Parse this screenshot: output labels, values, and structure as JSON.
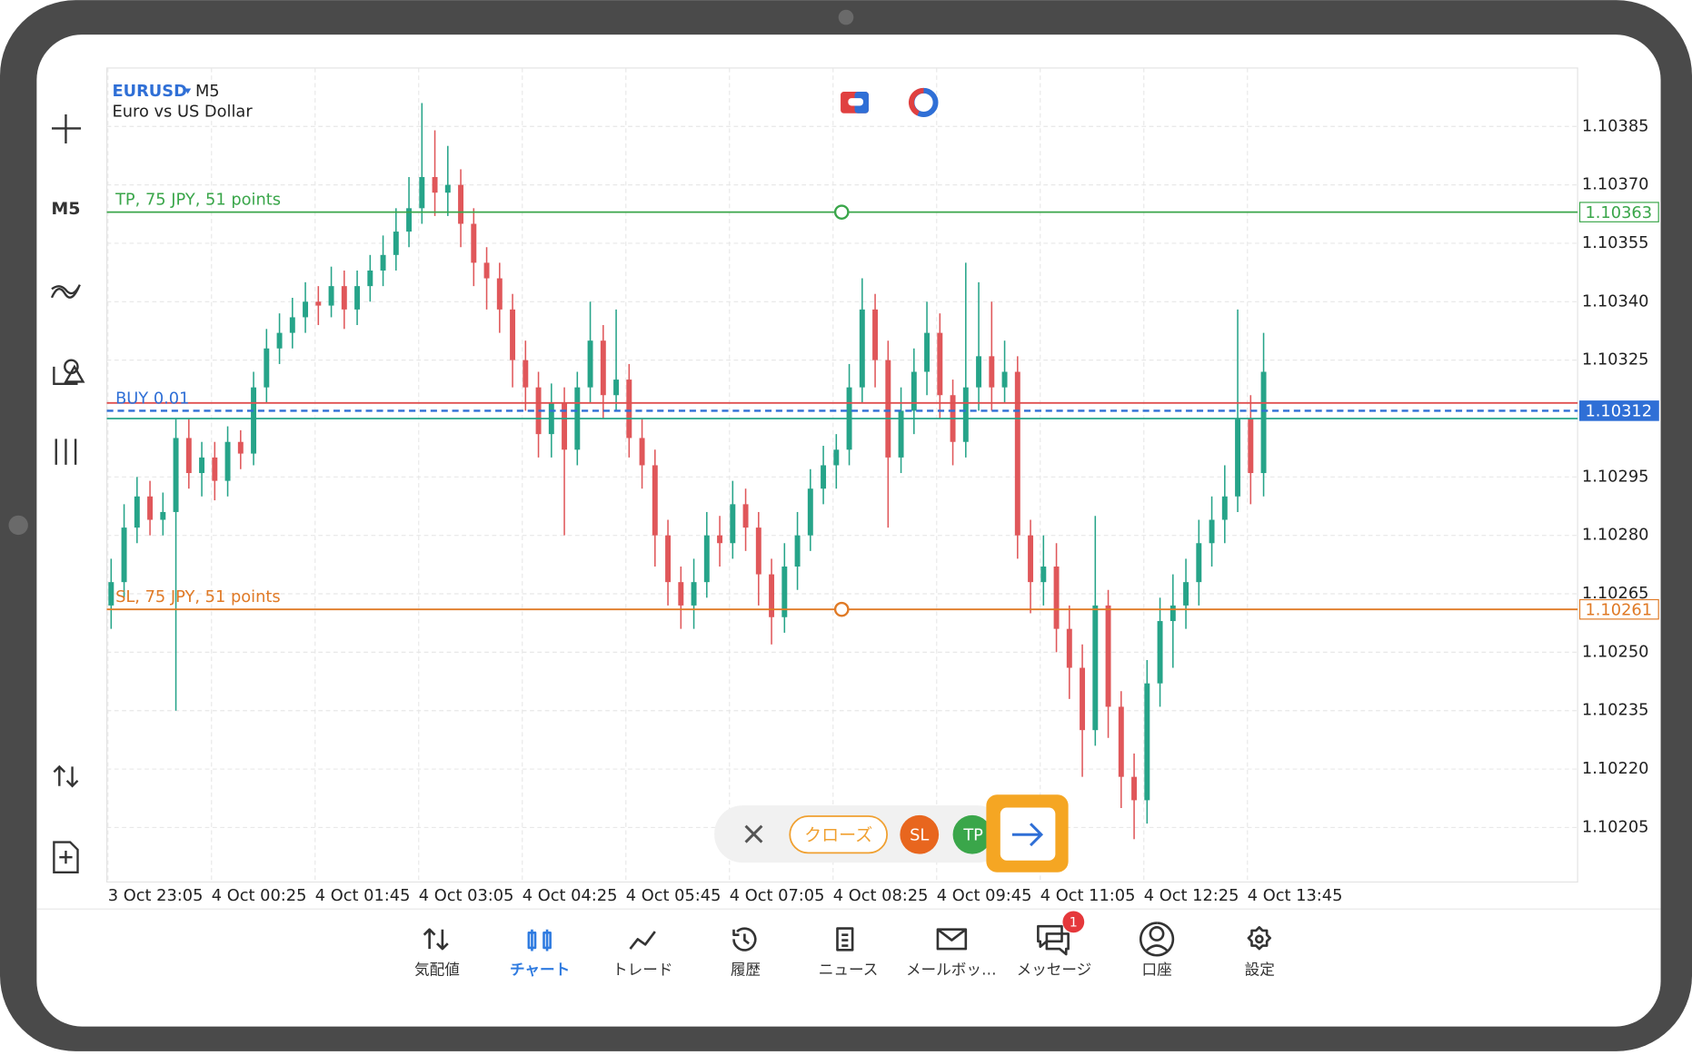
{
  "header": {
    "symbol": "EURUSD",
    "timeframe": "M5",
    "description": "Euro vs US Dollar"
  },
  "toolbar": {
    "timeframe": "M5"
  },
  "chart_data": {
    "type": "candlestick",
    "up_color": "#26a489",
    "down_color": "#e0575a",
    "grid": true,
    "ylim": [
      1.10191,
      1.104
    ],
    "yticks": [
      1.10385,
      {
        "value": 1.1037,
        "label": "1.10370"
      },
      1.10355,
      {
        "value": 1.1034,
        "label": "1.10340"
      },
      1.10325,
      1.10295,
      {
        "value": 1.1028,
        "label": "1.10280"
      },
      1.10265,
      {
        "value": 1.1025,
        "label": "1.10250"
      },
      1.10235,
      {
        "value": 1.1022,
        "label": "1.10220"
      },
      1.10205
    ],
    "x_labels": [
      "3 Oct 23:05",
      "4 Oct 00:25",
      "4 Oct 01:45",
      "4 Oct 03:05",
      "4 Oct 04:25",
      "4 Oct 05:45",
      "4 Oct 07:05",
      "4 Oct 08:25",
      "4 Oct 09:45",
      "4 Oct 11:05",
      "4 Oct 12:25",
      "4 Oct 13:45"
    ],
    "open": [
      1.10262,
      1.10268,
      1.10282,
      1.1029,
      1.10284,
      1.10286,
      1.10305,
      1.10296,
      1.103,
      1.10294,
      1.10304,
      1.10301,
      1.10318,
      1.10328,
      1.10332,
      1.10336,
      1.1034,
      1.10339,
      1.10344,
      1.10338,
      1.10344,
      1.10348,
      1.10352,
      1.10358,
      1.10364,
      1.10372,
      1.10368,
      1.1037,
      1.1036,
      1.1035,
      1.10346,
      1.10338,
      1.10325,
      1.10318,
      1.10306,
      1.10314,
      1.10302,
      1.10318,
      1.1033,
      1.10316,
      1.1032,
      1.10305,
      1.10298,
      1.1028,
      1.10268,
      1.10262,
      1.10268,
      1.1028,
      1.10278,
      1.10288,
      1.10282,
      1.1027,
      1.10259,
      1.10272,
      1.1028,
      1.10292,
      1.10298,
      1.10302,
      1.10318,
      1.10338,
      1.10325,
      1.103,
      1.10312,
      1.10322,
      1.10332,
      1.10316,
      1.10304,
      1.10318,
      1.10326,
      1.10318,
      1.10322,
      1.1028,
      1.10268,
      1.10272,
      1.10256,
      1.10246,
      1.1023,
      1.10262,
      1.10236,
      1.10218,
      1.10212,
      1.10242,
      1.10258,
      1.10262,
      1.10268,
      1.10278,
      1.10284,
      1.1029,
      1.1031,
      1.10296
    ],
    "high": [
      1.10274,
      1.10288,
      1.10295,
      1.10294,
      1.10291,
      1.1031,
      1.1031,
      1.10304,
      1.10304,
      1.10308,
      1.10307,
      1.10322,
      1.10333,
      1.10337,
      1.10341,
      1.10345,
      1.10344,
      1.10349,
      1.10348,
      1.10348,
      1.10352,
      1.10357,
      1.10364,
      1.10372,
      1.10391,
      1.10384,
      1.1038,
      1.10374,
      1.10364,
      1.10354,
      1.1035,
      1.10342,
      1.1033,
      1.10322,
      1.10319,
      1.10318,
      1.10322,
      1.1034,
      1.10334,
      1.10338,
      1.10324,
      1.1031,
      1.10302,
      1.10284,
      1.10272,
      1.10274,
      1.10286,
      1.10285,
      1.10294,
      1.10292,
      1.10286,
      1.10274,
      1.10278,
      1.10286,
      1.10297,
      1.10303,
      1.10306,
      1.10324,
      1.10346,
      1.10342,
      1.1033,
      1.10318,
      1.10328,
      1.1034,
      1.10337,
      1.1032,
      1.1035,
      1.10345,
      1.1034,
      1.1033,
      1.10326,
      1.10284,
      1.1028,
      1.10278,
      1.10262,
      1.10252,
      1.10285,
      1.10266,
      1.1024,
      1.10224,
      1.10248,
      1.10264,
      1.1027,
      1.10274,
      1.10284,
      1.1029,
      1.10298,
      1.10338,
      1.10316,
      1.10332
    ],
    "low": [
      1.10256,
      1.10264,
      1.10278,
      1.1028,
      1.1028,
      1.10235,
      1.10292,
      1.1029,
      1.10289,
      1.1029,
      1.10297,
      1.10298,
      1.10314,
      1.10324,
      1.10328,
      1.10332,
      1.10334,
      1.10336,
      1.10333,
      1.10334,
      1.1034,
      1.10344,
      1.10348,
      1.10354,
      1.1036,
      1.10362,
      1.10362,
      1.10354,
      1.10344,
      1.10338,
      1.10332,
      1.10318,
      1.10312,
      1.103,
      1.103,
      1.1028,
      1.10298,
      1.10314,
      1.1031,
      1.10312,
      1.103,
      1.10292,
      1.10272,
      1.10262,
      1.10256,
      1.10256,
      1.10264,
      1.10272,
      1.10274,
      1.10276,
      1.10262,
      1.10252,
      1.10255,
      1.10266,
      1.10276,
      1.10288,
      1.10292,
      1.10298,
      1.10314,
      1.10318,
      1.10282,
      1.10296,
      1.10306,
      1.10316,
      1.1031,
      1.10298,
      1.103,
      1.10312,
      1.10312,
      1.10314,
      1.10274,
      1.1026,
      1.10262,
      1.1025,
      1.10238,
      1.10218,
      1.10226,
      1.10228,
      1.1021,
      1.10202,
      1.10206,
      1.10236,
      1.10246,
      1.10256,
      1.10262,
      1.10272,
      1.10278,
      1.10286,
      1.10288,
      1.1029
    ],
    "close": [
      1.10268,
      1.10282,
      1.1029,
      1.10284,
      1.10286,
      1.10305,
      1.10296,
      1.103,
      1.10294,
      1.10304,
      1.10301,
      1.10318,
      1.10328,
      1.10332,
      1.10336,
      1.1034,
      1.10339,
      1.10344,
      1.10338,
      1.10344,
      1.10348,
      1.10352,
      1.10358,
      1.10364,
      1.10372,
      1.10368,
      1.1037,
      1.1036,
      1.1035,
      1.10346,
      1.10338,
      1.10325,
      1.10318,
      1.10306,
      1.10314,
      1.10302,
      1.10318,
      1.1033,
      1.10316,
      1.1032,
      1.10305,
      1.10298,
      1.1028,
      1.10268,
      1.10262,
      1.10268,
      1.1028,
      1.10278,
      1.10288,
      1.10282,
      1.1027,
      1.10259,
      1.10272,
      1.1028,
      1.10292,
      1.10298,
      1.10302,
      1.10318,
      1.10338,
      1.10325,
      1.103,
      1.10312,
      1.10322,
      1.10332,
      1.10316,
      1.10304,
      1.10318,
      1.10326,
      1.10318,
      1.10322,
      1.1028,
      1.10268,
      1.10272,
      1.10256,
      1.10246,
      1.1023,
      1.10262,
      1.10236,
      1.10218,
      1.10212,
      1.10242,
      1.10258,
      1.10262,
      1.10268,
      1.10278,
      1.10284,
      1.1029,
      1.1031,
      1.10296,
      1.10322
    ],
    "price_lines": [
      {
        "label": "TP, 75 JPY, 51 points",
        "value": 1.10363,
        "color": "#3aa64a",
        "style": "solid",
        "box": "outline"
      },
      {
        "label": "SL, 75 JPY, 51 points",
        "value": 1.10261,
        "color": "#e07a26",
        "style": "solid",
        "box": "outline"
      },
      {
        "value": 1.10314,
        "color": "#e05050",
        "style": "solid"
      },
      {
        "value": 1.1031,
        "color": "#26a489",
        "style": "solid"
      },
      {
        "label": "BUY 0.01",
        "value": 1.10312,
        "color": "#2f6fd6",
        "style": "dashed",
        "box": "filled"
      }
    ]
  },
  "trade_bar": {
    "close": "クローズ",
    "sl": "SL",
    "tp": "TP"
  },
  "tabs": [
    {
      "label": "気配値",
      "active": false
    },
    {
      "label": "チャート",
      "active": true
    },
    {
      "label": "トレード",
      "active": false
    },
    {
      "label": "履歴",
      "active": false
    },
    {
      "label": "ニュース",
      "active": false
    },
    {
      "label": "メールボッ…",
      "active": false
    },
    {
      "label": "メッセージ",
      "active": false,
      "badge": 1
    },
    {
      "label": "口座",
      "active": false
    },
    {
      "label": "設定",
      "active": false
    }
  ]
}
